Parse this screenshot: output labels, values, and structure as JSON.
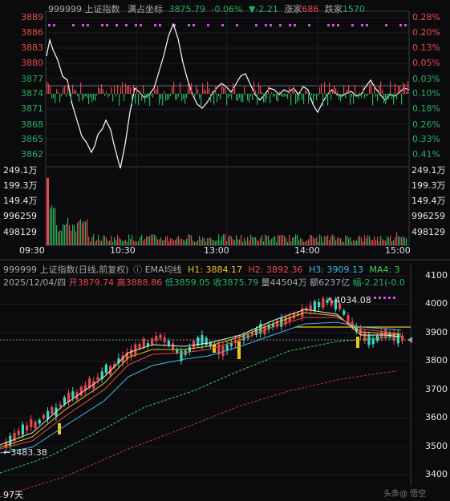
{
  "intraday": {
    "header": {
      "code_name": "999999 上证指数",
      "crosshair_label": "满占坐标",
      "price": "3875.79",
      "change_pct": "-0.06%",
      "change": "▼-2.21",
      "up_label": "涨家",
      "up_count": "686",
      "down_label": "跌家",
      "down_count": "1570"
    },
    "price_ticks_left": [
      "3889",
      "3886",
      "3883",
      "3880",
      "3877",
      "3874",
      "3871",
      "3868",
      "3865",
      "3862"
    ],
    "price_ticks_right": [
      "0.28%",
      "0.20%",
      "0.13%",
      "0.05%",
      "0.03%",
      "0.10%",
      "0.18%",
      "0.26%",
      "0.33%",
      "0.41%"
    ],
    "volume_ticks": [
      "249.1万",
      "199.3万",
      "149.4万",
      "996259",
      "498129"
    ],
    "time_labels": [
      "09:30",
      "10:30",
      "13:00",
      "14:00",
      "15:00"
    ]
  },
  "daily": {
    "header_line1": {
      "code_name": "999999 上证指数(日线,前复权)",
      "indicator_icon": "info-circle-icon",
      "indicator": "EMA均线",
      "h1": "H1: 3884.17",
      "h2": "H2: 3892.36",
      "h3": "H3: 3909.13",
      "ma4": "MA4: 3"
    },
    "header_line2": {
      "date": "2025/12/04/四",
      "open": "开3879.74",
      "high": "高3888.86",
      "low": "低3859.05",
      "close": "收3875.79",
      "volume": "量44504万",
      "amount": "额6237亿",
      "range": "幅-2.21(-0.0"
    },
    "price_ticks": [
      "4100",
      "4000",
      "3900",
      "3800",
      "3700",
      "3600",
      "3500",
      "3400"
    ],
    "annot_high": "4034.08",
    "annot_low": "3483.38",
    "period_label": "97天"
  },
  "colors": {
    "up": "#e5484d",
    "down": "#25b05b",
    "price_line": "#ffffff",
    "ema1": "#e8e8e8",
    "ema2": "#f0c419",
    "ema3": "#e5484d",
    "ema4": "#3fb8e0",
    "ema5": "#3fd04f",
    "ema6": "#c0392b",
    "accent": "#d54ce6"
  },
  "watermark": "头条@ 悟空"
}
